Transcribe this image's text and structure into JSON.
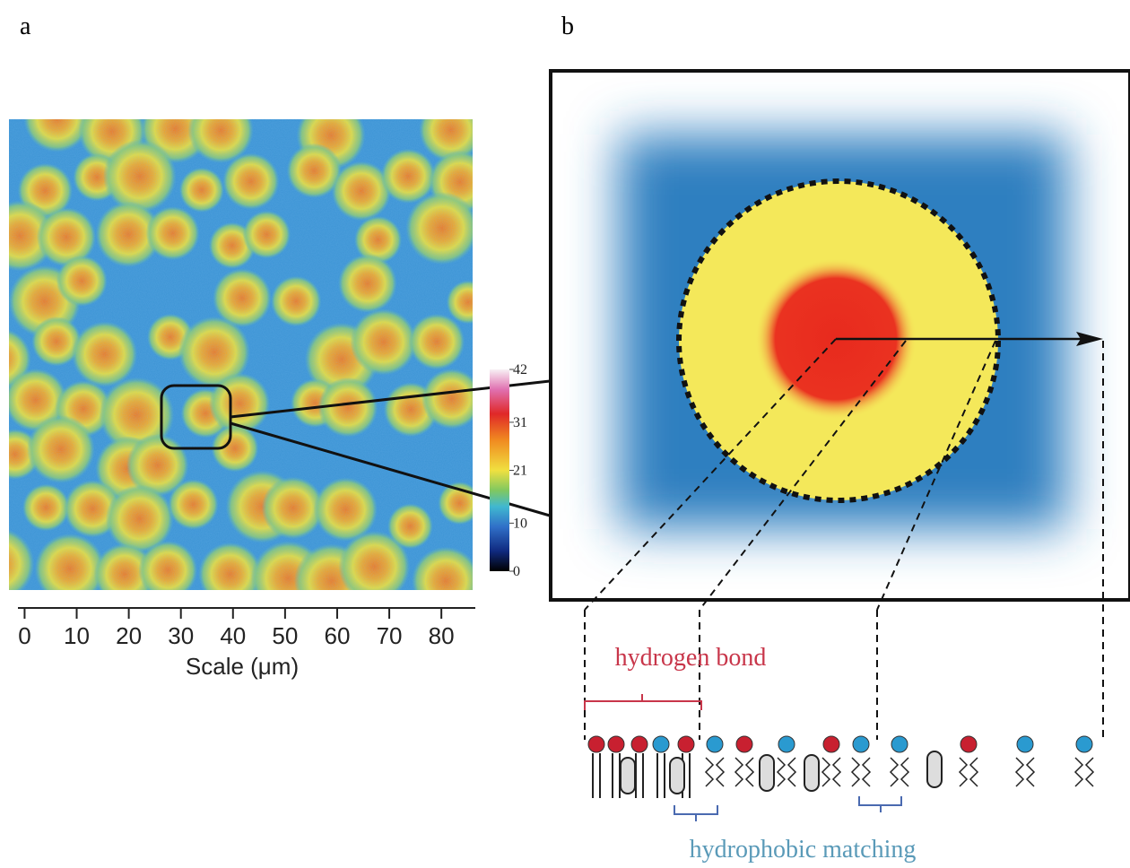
{
  "panel_a": {
    "label": "a",
    "xlabel": "Scale (μm)",
    "xlim": [
      -3,
      86
    ],
    "xticks": [
      0,
      10,
      20,
      30,
      40,
      50,
      60,
      70,
      80
    ],
    "colorbar": {
      "lim": [
        0,
        42
      ],
      "ticks": [
        0,
        10,
        21,
        31,
        42
      ]
    }
  },
  "panel_b": {
    "label": "b",
    "annotations": [
      "hydrogen bond",
      "hydrophobic matching"
    ]
  }
}
